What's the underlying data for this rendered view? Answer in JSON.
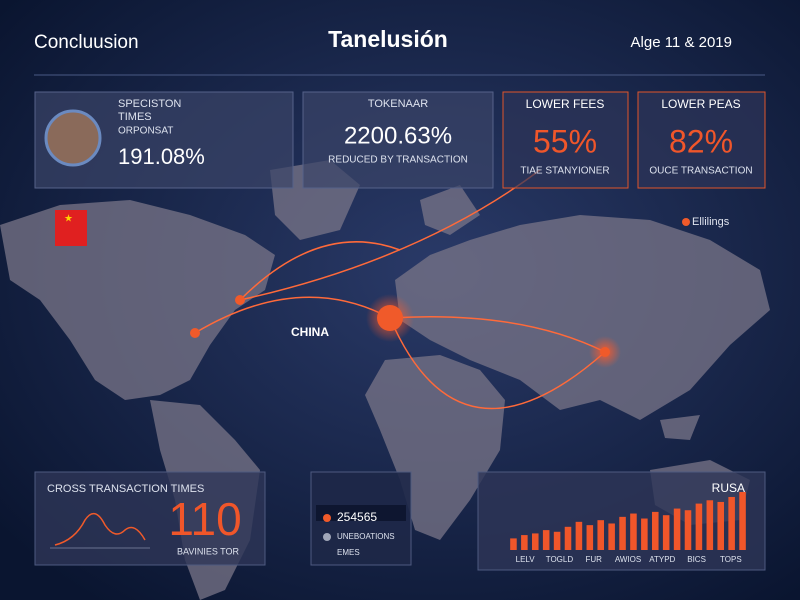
{
  "header": {
    "left": "Concluusion",
    "title": "Tanelusión",
    "date": "Alge 11 & 2019"
  },
  "cards": [
    {
      "title": "SPECISTON",
      "subtitle": "TIMES",
      "label": "ORPONSAT",
      "value": "191.08%"
    },
    {
      "title": "TOKENAAR",
      "value": "2200.63%",
      "caption": "REDUCED BY TRANSACTION"
    },
    {
      "title": "LOWER FEES",
      "value": "55%",
      "caption": "TIAE STANYIONER"
    },
    {
      "title": "LOWER PEAS",
      "value": "82%",
      "caption": "OUCE TRANSACTION"
    }
  ],
  "map": {
    "label": "CHINA",
    "legend": "Ellilings"
  },
  "panels": [
    {
      "title": "CROSS TRANSACTION TIMES",
      "value": "110",
      "caption": "BAVINIES TOR"
    },
    {
      "value": "254565",
      "item": "UNEBOATIONS",
      "footer": "EMES"
    }
  ],
  "bar_panel": {
    "title": "RUSA",
    "axis_labels": [
      "LELV",
      "TOGLD",
      "FUR",
      "AWIOS",
      "ATYPD",
      "BICS",
      "TOPS"
    ],
    "values": [
      14,
      18,
      20,
      24,
      22,
      28,
      34,
      30,
      36,
      32,
      40,
      44,
      38,
      46,
      42,
      50,
      48,
      56,
      60,
      58,
      64,
      70
    ],
    "color": "#f0562a"
  }
}
